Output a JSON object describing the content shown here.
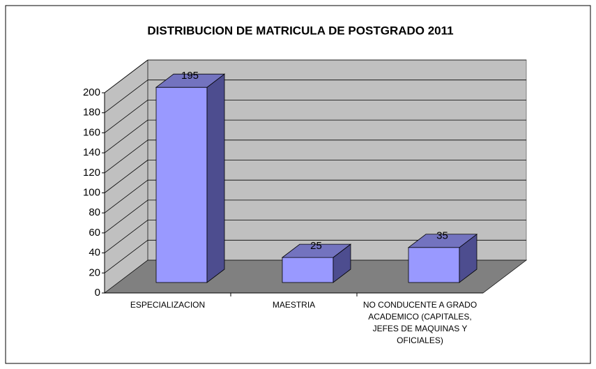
{
  "chart_data": {
    "type": "bar3d",
    "title": "DISTRIBUCION DE MATRICULA DE POSTGRADO 2011",
    "categories": [
      "ESPECIALIZACION",
      "MAESTRIA",
      "NO CONDUCENTE A GRADO ACADEMICO (CAPITALES, JEFES DE MAQUINAS Y OFICIALES)"
    ],
    "values": [
      195,
      25,
      35
    ],
    "color": "#9999ff",
    "ylim": [
      0,
      200
    ],
    "yticks": [
      0,
      20,
      40,
      60,
      80,
      100,
      120,
      140,
      160,
      180,
      200
    ],
    "grid": true
  }
}
